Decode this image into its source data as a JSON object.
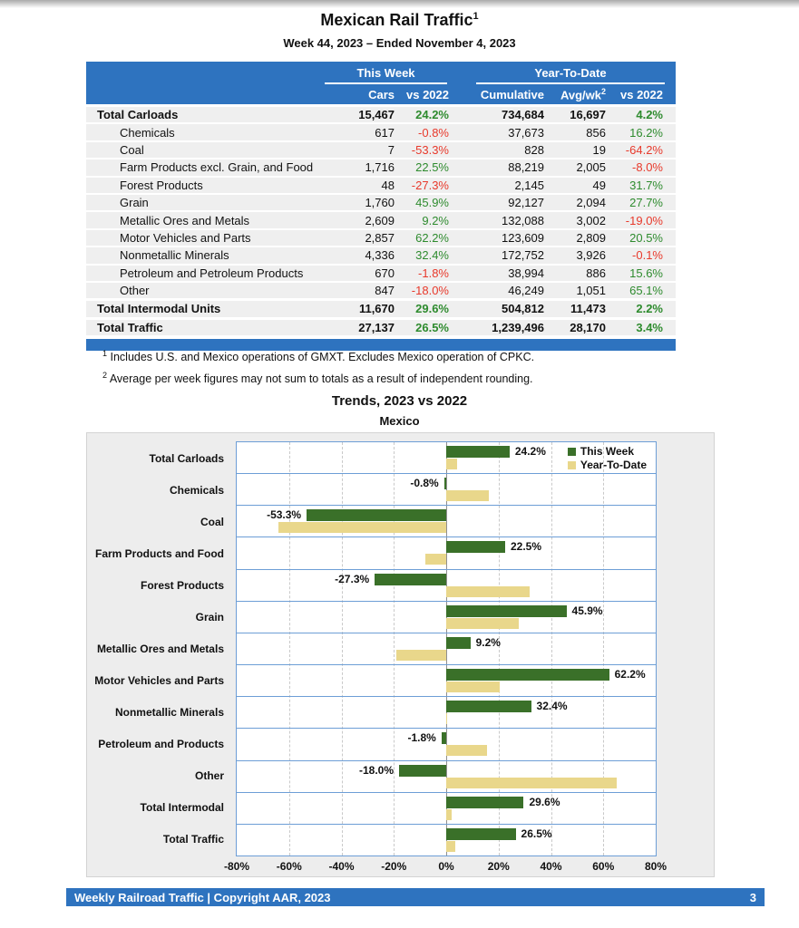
{
  "page": {
    "title": "Mexican Rail Traffic",
    "title_sup": "1",
    "subtitle": "Week 44, 2023 – Ended November 4, 2023"
  },
  "colors": {
    "header_blue": "#2e73bf",
    "row_gray": "#efefef",
    "positive_green": "#2e8b2e",
    "negative_red": "#e8392b",
    "band_blue": "#6d9ed6",
    "bar_green": "#3a7029",
    "bar_tan": "#e9d78b"
  },
  "table": {
    "group_headers": {
      "this_week": "This Week",
      "ytd": "Year-To-Date"
    },
    "col_headers": {
      "cars": "Cars",
      "cars_vs": "vs 2022",
      "cumulative": "Cumulative",
      "avg_wk": "Avg/wk",
      "avg_wk_sup": "2",
      "ytd_vs": "vs 2022"
    },
    "rows": [
      {
        "label": "Total Carloads",
        "bold": true,
        "indent": false,
        "cars": "15,467",
        "cars_vs": "24.2%",
        "cumulative": "734,684",
        "avg_wk": "16,697",
        "ytd_vs": "4.2%"
      },
      {
        "label": "Chemicals",
        "bold": false,
        "indent": true,
        "cars": "617",
        "cars_vs": "-0.8%",
        "cumulative": "37,673",
        "avg_wk": "856",
        "ytd_vs": "16.2%"
      },
      {
        "label": "Coal",
        "bold": false,
        "indent": true,
        "cars": "7",
        "cars_vs": "-53.3%",
        "cumulative": "828",
        "avg_wk": "19",
        "ytd_vs": "-64.2%"
      },
      {
        "label": "Farm Products excl. Grain, and Food",
        "bold": false,
        "indent": true,
        "cars": "1,716",
        "cars_vs": "22.5%",
        "cumulative": "88,219",
        "avg_wk": "2,005",
        "ytd_vs": "-8.0%"
      },
      {
        "label": "Forest Products",
        "bold": false,
        "indent": true,
        "cars": "48",
        "cars_vs": "-27.3%",
        "cumulative": "2,145",
        "avg_wk": "49",
        "ytd_vs": "31.7%"
      },
      {
        "label": "Grain",
        "bold": false,
        "indent": true,
        "cars": "1,760",
        "cars_vs": "45.9%",
        "cumulative": "92,127",
        "avg_wk": "2,094",
        "ytd_vs": "27.7%"
      },
      {
        "label": "Metallic Ores and Metals",
        "bold": false,
        "indent": true,
        "cars": "2,609",
        "cars_vs": "9.2%",
        "cumulative": "132,088",
        "avg_wk": "3,002",
        "ytd_vs": "-19.0%"
      },
      {
        "label": "Motor Vehicles and Parts",
        "bold": false,
        "indent": true,
        "cars": "2,857",
        "cars_vs": "62.2%",
        "cumulative": "123,609",
        "avg_wk": "2,809",
        "ytd_vs": "20.5%"
      },
      {
        "label": "Nonmetallic Minerals",
        "bold": false,
        "indent": true,
        "cars": "4,336",
        "cars_vs": "32.4%",
        "cumulative": "172,752",
        "avg_wk": "3,926",
        "ytd_vs": "-0.1%"
      },
      {
        "label": "Petroleum and Petroleum Products",
        "bold": false,
        "indent": true,
        "cars": "670",
        "cars_vs": "-1.8%",
        "cumulative": "38,994",
        "avg_wk": "886",
        "ytd_vs": "15.6%"
      },
      {
        "label": "Other",
        "bold": false,
        "indent": true,
        "cars": "847",
        "cars_vs": "-18.0%",
        "cumulative": "46,249",
        "avg_wk": "1,051",
        "ytd_vs": "65.1%"
      },
      {
        "label": "Total Intermodal Units",
        "bold": true,
        "indent": false,
        "cars": "11,670",
        "cars_vs": "29.6%",
        "cumulative": "504,812",
        "avg_wk": "11,473",
        "ytd_vs": "2.2%"
      },
      {
        "label": "Total Traffic",
        "bold": true,
        "indent": false,
        "cars": "27,137",
        "cars_vs": "26.5%",
        "cumulative": "1,239,496",
        "avg_wk": "28,170",
        "ytd_vs": "3.4%"
      }
    ]
  },
  "footnotes": [
    {
      "sup": "1",
      "text": "Includes U.S. and Mexico operations of GMXT. Excludes Mexico operation of CPKC."
    },
    {
      "sup": "2",
      "text": "Average per week figures may not sum to totals as a result of independent rounding."
    }
  ],
  "chart": {
    "title": "Trends, 2023 vs 2022",
    "subtitle": "Mexico",
    "legend": [
      "This Week",
      "Year-To-Date"
    ]
  },
  "chart_data": {
    "type": "bar",
    "orientation": "horizontal",
    "title": "Trends, 2023 vs 2022",
    "subtitle": "Mexico",
    "categories": [
      "Total Carloads",
      "Chemicals",
      "Coal",
      "Farm Products and Food",
      "Forest Products",
      "Grain",
      "Metallic Ores and Metals",
      "Motor Vehicles and Parts",
      "Nonmetallic Minerals",
      "Petroleum and Products",
      "Other",
      "Total Intermodal",
      "Total Traffic"
    ],
    "series": [
      {
        "name": "This Week",
        "color": "#3a7029",
        "values": [
          24.2,
          -0.8,
          -53.3,
          22.5,
          -27.3,
          45.9,
          9.2,
          62.2,
          32.4,
          -1.8,
          -18.0,
          29.6,
          26.5
        ]
      },
      {
        "name": "Year-To-Date",
        "color": "#e9d78b",
        "values": [
          4.2,
          16.2,
          -64.2,
          -8.0,
          31.7,
          27.7,
          -19.0,
          20.5,
          -0.1,
          15.6,
          65.1,
          2.2,
          3.4
        ]
      }
    ],
    "data_labels": [
      "24.2%",
      "-0.8%",
      "-53.3%",
      "22.5%",
      "-27.3%",
      "45.9%",
      "9.2%",
      "62.2%",
      "32.4%",
      "-1.8%",
      "-18.0%",
      "29.6%",
      "26.5%"
    ],
    "xlim": [
      -80,
      80
    ],
    "tick_step": 20,
    "x_ticks": [
      "-80%",
      "-60%",
      "-40%",
      "-20%",
      "0%",
      "20%",
      "40%",
      "60%",
      "80%"
    ],
    "grid": true,
    "legend_position": "top-right"
  },
  "footer": {
    "text": "Weekly Railroad Traffic | Copyright AAR, 2023",
    "page_number": "3"
  }
}
